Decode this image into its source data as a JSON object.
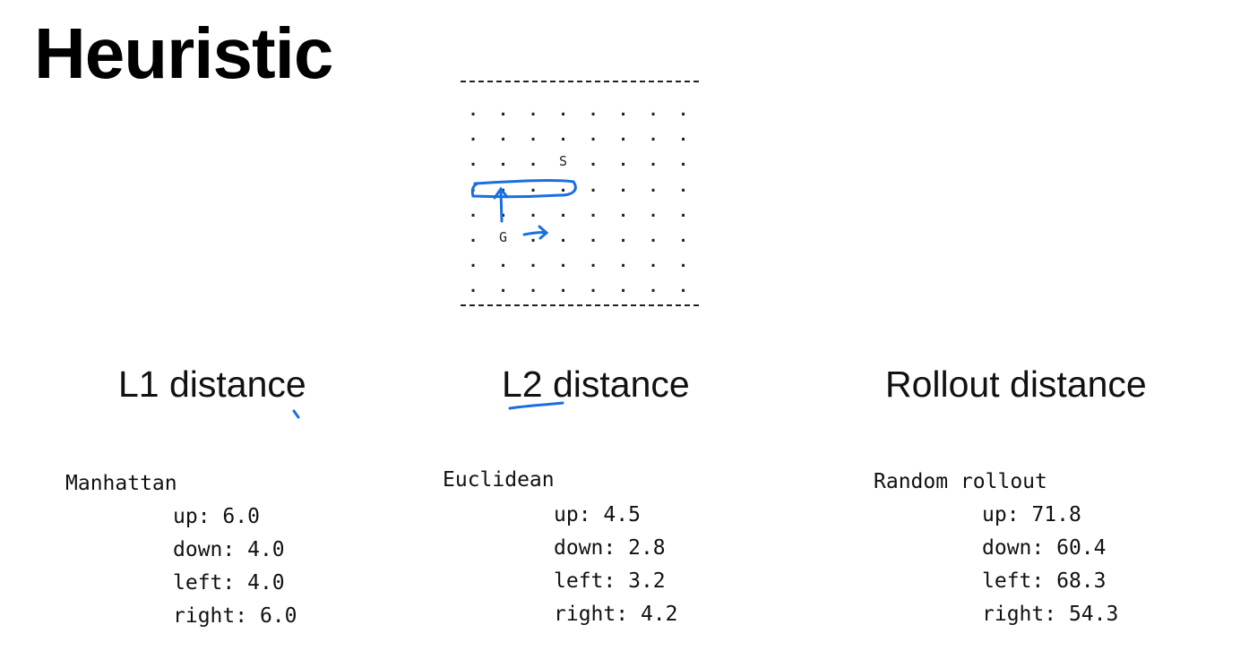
{
  "title": "Heuristic",
  "grid": {
    "cols": 8,
    "rows": 8,
    "start_label": "S",
    "start_cell": [
      3,
      2
    ],
    "goal_label": "G",
    "goal_cell": [
      1,
      5
    ],
    "annotation_color": "#1a6fdf"
  },
  "columns": [
    {
      "heading": "L1 distance",
      "method": "Manhattan",
      "values": [
        {
          "dir": "up",
          "value": "6.0"
        },
        {
          "dir": "down",
          "value": "4.0"
        },
        {
          "dir": "left",
          "value": "4.0"
        },
        {
          "dir": "right",
          "value": "6.0"
        }
      ]
    },
    {
      "heading": "L2 distance",
      "method": "Euclidean",
      "values": [
        {
          "dir": "up",
          "value": "4.5"
        },
        {
          "dir": "down",
          "value": "2.8"
        },
        {
          "dir": "left",
          "value": "3.2"
        },
        {
          "dir": "right",
          "value": "4.2"
        }
      ]
    },
    {
      "heading": "Rollout distance",
      "method": "Random rollout",
      "values": [
        {
          "dir": "up",
          "value": "71.8"
        },
        {
          "dir": "down",
          "value": "60.4"
        },
        {
          "dir": "left",
          "value": "68.3"
        },
        {
          "dir": "right",
          "value": "54.3"
        }
      ]
    }
  ]
}
